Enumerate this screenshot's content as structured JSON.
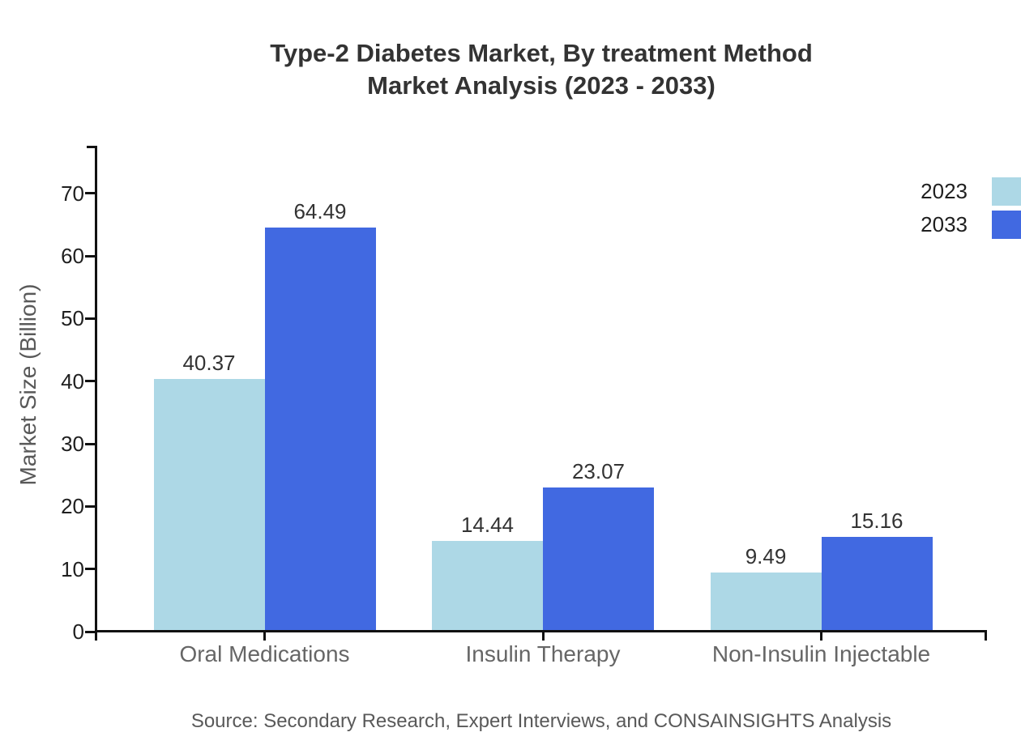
{
  "title_line1": "Type-2 Diabetes Market, By treatment Method",
  "title_line2": "Market Analysis (2023 - 2033)",
  "source": "Source: Secondary Research, Expert Interviews, and CONSAINSIGHTS Analysis",
  "chart_data": {
    "type": "bar",
    "title": "Type-2 Diabetes Market, By treatment Method Market Analysis (2023 - 2033)",
    "categories": [
      "Oral Medications",
      "Insulin Therapy",
      "Non-Insulin Injectable"
    ],
    "series": [
      {
        "name": "2023",
        "color": "#ADD8E6",
        "values": [
          40.37,
          14.44,
          9.49
        ]
      },
      {
        "name": "2033",
        "color": "#4169E1",
        "values": [
          64.49,
          23.07,
          15.16
        ]
      }
    ],
    "xlabel": "",
    "ylabel": "Market Size (Billion)",
    "yticks": [
      0,
      10,
      20,
      30,
      40,
      50,
      60,
      70
    ],
    "ylim": [
      0,
      77.6
    ],
    "grid": false,
    "legend_position": "top-right",
    "value_labels": true,
    "value_label_color": "#333333",
    "axis_color": "#111111",
    "category_label_color": "#666666"
  }
}
